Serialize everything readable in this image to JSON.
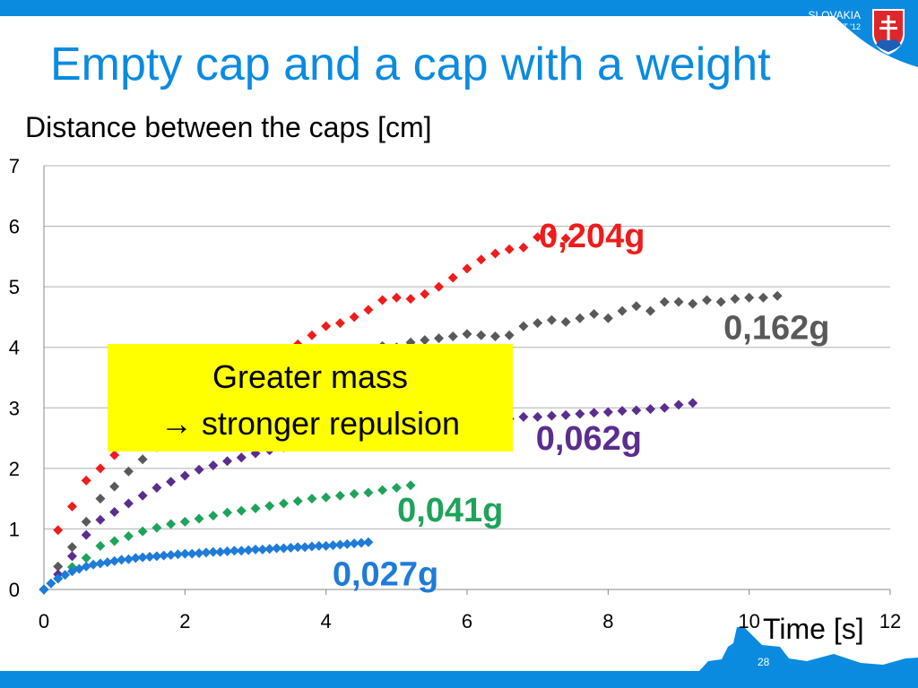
{
  "slide": {
    "title": "Empty cap and a cap with a weight",
    "brand_country": "SLOVAKIA",
    "brand_event": "IYPT '12",
    "page_number": "28",
    "callout_line1": "Greater mass",
    "callout_line2": "→ stronger repulsion"
  },
  "colors": {
    "brand_blue": "#0a8be0",
    "callout_bg": "#ffff00"
  },
  "chart_data": {
    "type": "scatter",
    "title": "Distance between the caps [cm]",
    "xlabel": "Time [s]",
    "ylabel": "",
    "xlim": [
      0,
      12
    ],
    "ylim": [
      0,
      7
    ],
    "x_ticks": [
      "0",
      "2",
      "4",
      "6",
      "8",
      "10",
      "12"
    ],
    "y_ticks": [
      "0",
      "1",
      "2",
      "3",
      "4",
      "5",
      "6",
      "7"
    ],
    "grid": "horizontal",
    "marker": "diamond",
    "series": [
      {
        "name": "0,204g",
        "color": "#ee1c1c",
        "x": [
          0,
          0.2,
          0.4,
          0.6,
          0.8,
          1.0,
          1.2,
          1.4,
          1.6,
          1.8,
          2.0,
          2.2,
          2.4,
          2.6,
          2.8,
          3.0,
          3.2,
          3.4,
          3.6,
          3.8,
          4.0,
          4.2,
          4.4,
          4.6,
          4.8,
          5.0,
          5.2,
          5.4,
          5.6,
          5.8,
          6.0,
          6.2,
          6.4,
          6.6,
          6.8,
          7.0,
          7.2,
          7.4
        ],
        "y": [
          0,
          0.98,
          1.37,
          1.8,
          2.0,
          2.22,
          2.4,
          2.6,
          2.75,
          2.9,
          3.05,
          3.2,
          3.35,
          3.5,
          3.65,
          3.75,
          3.85,
          3.95,
          4.05,
          4.2,
          4.35,
          4.4,
          4.5,
          4.62,
          4.78,
          4.82,
          4.8,
          4.88,
          5.0,
          5.15,
          5.3,
          5.45,
          5.55,
          5.62,
          5.65,
          5.82,
          5.87,
          5.8
        ]
      },
      {
        "name": "0,162g",
        "color": "#595959",
        "x": [
          0,
          0.2,
          0.4,
          0.6,
          0.8,
          1.0,
          1.2,
          1.4,
          1.6,
          1.8,
          2.0,
          2.2,
          2.4,
          2.6,
          2.8,
          3.0,
          3.2,
          3.4,
          3.6,
          3.8,
          4.0,
          4.2,
          4.4,
          4.6,
          4.8,
          5.0,
          5.2,
          5.4,
          5.6,
          5.8,
          6.0,
          6.2,
          6.4,
          6.6,
          6.8,
          7.0,
          7.2,
          7.4,
          7.6,
          7.8,
          8.0,
          8.2,
          8.4,
          8.6,
          8.8,
          9.0,
          9.2,
          9.4,
          9.6,
          9.8,
          10.0,
          10.2,
          10.4
        ],
        "y": [
          0,
          0.38,
          0.7,
          1.12,
          1.5,
          1.7,
          1.95,
          2.15,
          2.35,
          2.5,
          2.65,
          2.8,
          2.95,
          3.1,
          3.2,
          3.3,
          3.4,
          3.5,
          3.6,
          3.7,
          3.75,
          3.85,
          3.9,
          3.95,
          4.02,
          4.0,
          4.08,
          4.12,
          4.15,
          4.18,
          4.22,
          4.2,
          4.18,
          4.2,
          4.35,
          4.4,
          4.45,
          4.42,
          4.48,
          4.55,
          4.48,
          4.6,
          4.68,
          4.6,
          4.75,
          4.75,
          4.72,
          4.78,
          4.75,
          4.8,
          4.82,
          4.82,
          4.85
        ]
      },
      {
        "name": "0,062g",
        "color": "#5b2d8e",
        "x": [
          0,
          0.2,
          0.4,
          0.6,
          0.8,
          1.0,
          1.2,
          1.4,
          1.6,
          1.8,
          2.0,
          2.2,
          2.4,
          2.6,
          2.8,
          3.0,
          3.2,
          3.4,
          3.6,
          3.8,
          4.0,
          4.2,
          4.4,
          4.6,
          4.8,
          5.0,
          5.2,
          5.4,
          5.6,
          5.8,
          6.0,
          6.2,
          6.4,
          6.6,
          6.8,
          7.0,
          7.2,
          7.4,
          7.6,
          7.8,
          8.0,
          8.2,
          8.4,
          8.6,
          8.8,
          9.0,
          9.2
        ],
        "y": [
          0,
          0.25,
          0.55,
          0.9,
          1.15,
          1.28,
          1.42,
          1.55,
          1.68,
          1.78,
          1.88,
          1.98,
          2.05,
          2.12,
          2.18,
          2.25,
          2.3,
          2.35,
          2.4,
          2.45,
          2.5,
          2.55,
          2.58,
          2.6,
          2.62,
          2.65,
          2.68,
          2.7,
          2.72,
          2.75,
          2.78,
          2.78,
          2.8,
          2.82,
          2.85,
          2.85,
          2.87,
          2.88,
          2.9,
          2.92,
          2.93,
          2.95,
          2.96,
          2.98,
          3.0,
          3.05,
          3.08
        ]
      },
      {
        "name": "0,041g",
        "color": "#1ea35a",
        "x": [
          0,
          0.2,
          0.4,
          0.6,
          0.8,
          1.0,
          1.2,
          1.4,
          1.6,
          1.8,
          2.0,
          2.2,
          2.4,
          2.6,
          2.8,
          3.0,
          3.2,
          3.4,
          3.6,
          3.8,
          4.0,
          4.2,
          4.4,
          4.6,
          4.8,
          5.0,
          5.2
        ],
        "y": [
          0,
          0.18,
          0.37,
          0.52,
          0.72,
          0.8,
          0.88,
          0.96,
          1.02,
          1.08,
          1.12,
          1.17,
          1.22,
          1.27,
          1.3,
          1.34,
          1.38,
          1.42,
          1.46,
          1.5,
          1.52,
          1.55,
          1.58,
          1.6,
          1.64,
          1.68,
          1.72
        ]
      },
      {
        "name": "0,027g",
        "color": "#1f7bd8",
        "x": [
          0,
          0.1,
          0.2,
          0.3,
          0.4,
          0.5,
          0.6,
          0.7,
          0.8,
          0.9,
          1.0,
          1.1,
          1.2,
          1.3,
          1.4,
          1.5,
          1.6,
          1.7,
          1.8,
          1.9,
          2.0,
          2.1,
          2.2,
          2.3,
          2.4,
          2.5,
          2.6,
          2.7,
          2.8,
          2.9,
          3.0,
          3.1,
          3.2,
          3.3,
          3.4,
          3.5,
          3.6,
          3.7,
          3.8,
          3.9,
          4.0,
          4.1,
          4.2,
          4.3,
          4.4,
          4.5,
          4.6
        ],
        "y": [
          0,
          0.1,
          0.18,
          0.24,
          0.3,
          0.34,
          0.38,
          0.41,
          0.43,
          0.45,
          0.47,
          0.49,
          0.5,
          0.52,
          0.53,
          0.54,
          0.55,
          0.56,
          0.57,
          0.58,
          0.59,
          0.59,
          0.6,
          0.61,
          0.62,
          0.62,
          0.63,
          0.64,
          0.64,
          0.65,
          0.66,
          0.66,
          0.67,
          0.68,
          0.68,
          0.69,
          0.7,
          0.7,
          0.71,
          0.72,
          0.72,
          0.73,
          0.74,
          0.75,
          0.76,
          0.77,
          0.78
        ]
      }
    ]
  }
}
